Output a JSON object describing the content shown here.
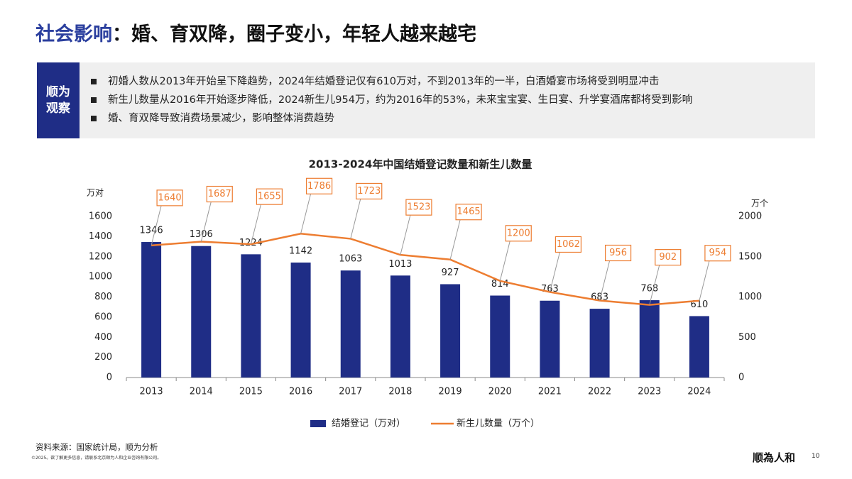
{
  "header": {
    "title_highlight": "社会影响",
    "title_rest": "：婚、育双降，圈子变小，年轻人越来越宅"
  },
  "observation": {
    "tag": [
      "顺为",
      "观察"
    ],
    "bullets": [
      "初婚人数从2013年开始呈下降趋势，2024年结婚登记仅有610万对，不到2013年的一半，白酒婚宴市场将受到明显冲击",
      "新生儿数量从2016年开始逐步降低，2024新生儿954万，约为2016年的53%，未来宝宝宴、生日宴、升学宴酒席都将受到影响",
      "婚、育双降导致消费场景减少，影响整体消费趋势"
    ]
  },
  "chart_data": {
    "type": "combo",
    "title": "2013-2024年中国结婚登记数量和新生儿数量",
    "y_label": "万对",
    "y2_label": "万个",
    "categories": [
      "2013",
      "2014",
      "2015",
      "2016",
      "2017",
      "2018",
      "2019",
      "2020",
      "2021",
      "2022",
      "2023",
      "2024"
    ],
    "series": [
      {
        "name": "结婚登记（万对）",
        "type": "bar",
        "color": "#1f2d86",
        "values": [
          1346,
          1306,
          1224,
          1142,
          1063,
          1013,
          927,
          814,
          763,
          683,
          768,
          610
        ]
      },
      {
        "name": "新生儿数量（万个）",
        "type": "line",
        "color": "#ed7d31",
        "axis": "y2",
        "values": [
          1640,
          1687,
          1655,
          1786,
          1723,
          1523,
          1465,
          1200,
          1062,
          956,
          902,
          954
        ]
      }
    ],
    "ylim": [
      0,
      1600
    ],
    "yticks": [
      0,
      200,
      400,
      600,
      800,
      1000,
      1200,
      1400,
      1600
    ],
    "y2lim": [
      0,
      2000
    ],
    "y2ticks": [
      0,
      500,
      1000,
      1500,
      2000
    ],
    "grid": false,
    "legend": "bottom"
  },
  "footer": {
    "source": "资料来源：国家统计局，顺为分析",
    "copyright": "©2025。欲了解更多信息，请联系北京顺为人和企业咨询有限公司。",
    "logo": "顺為人和",
    "page": "10"
  }
}
